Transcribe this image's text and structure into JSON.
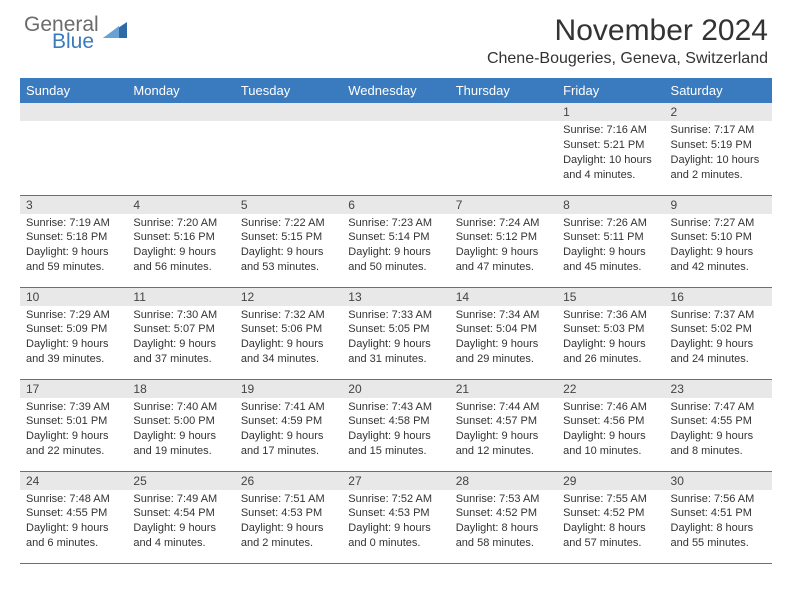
{
  "brand": {
    "word1": "General",
    "word2": "Blue",
    "icon_color": "#2f6aa8"
  },
  "header": {
    "title": "November 2024",
    "location": "Chene-Bougeries, Geneva, Switzerland"
  },
  "colors": {
    "header_bg": "#3a7bbf",
    "daynum_bg": "#e8e8e8",
    "border": "#3a7bbf"
  },
  "dayNames": [
    "Sunday",
    "Monday",
    "Tuesday",
    "Wednesday",
    "Thursday",
    "Friday",
    "Saturday"
  ],
  "weeks": [
    [
      {
        "n": "",
        "lines": [
          "",
          "",
          "",
          ""
        ]
      },
      {
        "n": "",
        "lines": [
          "",
          "",
          "",
          ""
        ]
      },
      {
        "n": "",
        "lines": [
          "",
          "",
          "",
          ""
        ]
      },
      {
        "n": "",
        "lines": [
          "",
          "",
          "",
          ""
        ]
      },
      {
        "n": "",
        "lines": [
          "",
          "",
          "",
          ""
        ]
      },
      {
        "n": "1",
        "lines": [
          "Sunrise: 7:16 AM",
          "Sunset: 5:21 PM",
          "Daylight: 10 hours",
          "and 4 minutes."
        ]
      },
      {
        "n": "2",
        "lines": [
          "Sunrise: 7:17 AM",
          "Sunset: 5:19 PM",
          "Daylight: 10 hours",
          "and 2 minutes."
        ]
      }
    ],
    [
      {
        "n": "3",
        "lines": [
          "Sunrise: 7:19 AM",
          "Sunset: 5:18 PM",
          "Daylight: 9 hours",
          "and 59 minutes."
        ]
      },
      {
        "n": "4",
        "lines": [
          "Sunrise: 7:20 AM",
          "Sunset: 5:16 PM",
          "Daylight: 9 hours",
          "and 56 minutes."
        ]
      },
      {
        "n": "5",
        "lines": [
          "Sunrise: 7:22 AM",
          "Sunset: 5:15 PM",
          "Daylight: 9 hours",
          "and 53 minutes."
        ]
      },
      {
        "n": "6",
        "lines": [
          "Sunrise: 7:23 AM",
          "Sunset: 5:14 PM",
          "Daylight: 9 hours",
          "and 50 minutes."
        ]
      },
      {
        "n": "7",
        "lines": [
          "Sunrise: 7:24 AM",
          "Sunset: 5:12 PM",
          "Daylight: 9 hours",
          "and 47 minutes."
        ]
      },
      {
        "n": "8",
        "lines": [
          "Sunrise: 7:26 AM",
          "Sunset: 5:11 PM",
          "Daylight: 9 hours",
          "and 45 minutes."
        ]
      },
      {
        "n": "9",
        "lines": [
          "Sunrise: 7:27 AM",
          "Sunset: 5:10 PM",
          "Daylight: 9 hours",
          "and 42 minutes."
        ]
      }
    ],
    [
      {
        "n": "10",
        "lines": [
          "Sunrise: 7:29 AM",
          "Sunset: 5:09 PM",
          "Daylight: 9 hours",
          "and 39 minutes."
        ]
      },
      {
        "n": "11",
        "lines": [
          "Sunrise: 7:30 AM",
          "Sunset: 5:07 PM",
          "Daylight: 9 hours",
          "and 37 minutes."
        ]
      },
      {
        "n": "12",
        "lines": [
          "Sunrise: 7:32 AM",
          "Sunset: 5:06 PM",
          "Daylight: 9 hours",
          "and 34 minutes."
        ]
      },
      {
        "n": "13",
        "lines": [
          "Sunrise: 7:33 AM",
          "Sunset: 5:05 PM",
          "Daylight: 9 hours",
          "and 31 minutes."
        ]
      },
      {
        "n": "14",
        "lines": [
          "Sunrise: 7:34 AM",
          "Sunset: 5:04 PM",
          "Daylight: 9 hours",
          "and 29 minutes."
        ]
      },
      {
        "n": "15",
        "lines": [
          "Sunrise: 7:36 AM",
          "Sunset: 5:03 PM",
          "Daylight: 9 hours",
          "and 26 minutes."
        ]
      },
      {
        "n": "16",
        "lines": [
          "Sunrise: 7:37 AM",
          "Sunset: 5:02 PM",
          "Daylight: 9 hours",
          "and 24 minutes."
        ]
      }
    ],
    [
      {
        "n": "17",
        "lines": [
          "Sunrise: 7:39 AM",
          "Sunset: 5:01 PM",
          "Daylight: 9 hours",
          "and 22 minutes."
        ]
      },
      {
        "n": "18",
        "lines": [
          "Sunrise: 7:40 AM",
          "Sunset: 5:00 PM",
          "Daylight: 9 hours",
          "and 19 minutes."
        ]
      },
      {
        "n": "19",
        "lines": [
          "Sunrise: 7:41 AM",
          "Sunset: 4:59 PM",
          "Daylight: 9 hours",
          "and 17 minutes."
        ]
      },
      {
        "n": "20",
        "lines": [
          "Sunrise: 7:43 AM",
          "Sunset: 4:58 PM",
          "Daylight: 9 hours",
          "and 15 minutes."
        ]
      },
      {
        "n": "21",
        "lines": [
          "Sunrise: 7:44 AM",
          "Sunset: 4:57 PM",
          "Daylight: 9 hours",
          "and 12 minutes."
        ]
      },
      {
        "n": "22",
        "lines": [
          "Sunrise: 7:46 AM",
          "Sunset: 4:56 PM",
          "Daylight: 9 hours",
          "and 10 minutes."
        ]
      },
      {
        "n": "23",
        "lines": [
          "Sunrise: 7:47 AM",
          "Sunset: 4:55 PM",
          "Daylight: 9 hours",
          "and 8 minutes."
        ]
      }
    ],
    [
      {
        "n": "24",
        "lines": [
          "Sunrise: 7:48 AM",
          "Sunset: 4:55 PM",
          "Daylight: 9 hours",
          "and 6 minutes."
        ]
      },
      {
        "n": "25",
        "lines": [
          "Sunrise: 7:49 AM",
          "Sunset: 4:54 PM",
          "Daylight: 9 hours",
          "and 4 minutes."
        ]
      },
      {
        "n": "26",
        "lines": [
          "Sunrise: 7:51 AM",
          "Sunset: 4:53 PM",
          "Daylight: 9 hours",
          "and 2 minutes."
        ]
      },
      {
        "n": "27",
        "lines": [
          "Sunrise: 7:52 AM",
          "Sunset: 4:53 PM",
          "Daylight: 9 hours",
          "and 0 minutes."
        ]
      },
      {
        "n": "28",
        "lines": [
          "Sunrise: 7:53 AM",
          "Sunset: 4:52 PM",
          "Daylight: 8 hours",
          "and 58 minutes."
        ]
      },
      {
        "n": "29",
        "lines": [
          "Sunrise: 7:55 AM",
          "Sunset: 4:52 PM",
          "Daylight: 8 hours",
          "and 57 minutes."
        ]
      },
      {
        "n": "30",
        "lines": [
          "Sunrise: 7:56 AM",
          "Sunset: 4:51 PM",
          "Daylight: 8 hours",
          "and 55 minutes."
        ]
      }
    ]
  ]
}
